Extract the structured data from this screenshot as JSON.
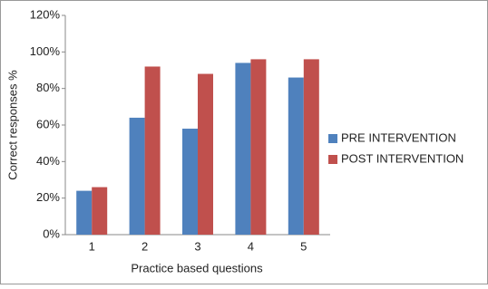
{
  "chart_data": {
    "type": "bar",
    "x_label": "Practice based questions",
    "y_label": "Correct responses %",
    "categories": [
      "1",
      "2",
      "3",
      "4",
      "5"
    ],
    "series": [
      {
        "name": "PRE INTERVENTION",
        "color": "#4f81bd",
        "values": [
          24,
          64,
          58,
          94,
          86
        ]
      },
      {
        "name": "POST INTERVENTION",
        "color": "#c0504d",
        "values": [
          26,
          92,
          88,
          96,
          96
        ]
      }
    ],
    "ylim": [
      0,
      120
    ],
    "yticks": [
      {
        "value": 0,
        "label": "0%"
      },
      {
        "value": 20,
        "label": "20%"
      },
      {
        "value": 40,
        "label": "40%"
      },
      {
        "value": 60,
        "label": "60%"
      },
      {
        "value": 80,
        "label": "80%"
      },
      {
        "value": 100,
        "label": "100%"
      },
      {
        "value": 120,
        "label": "120%"
      }
    ],
    "grid": false,
    "legend": "right"
  }
}
